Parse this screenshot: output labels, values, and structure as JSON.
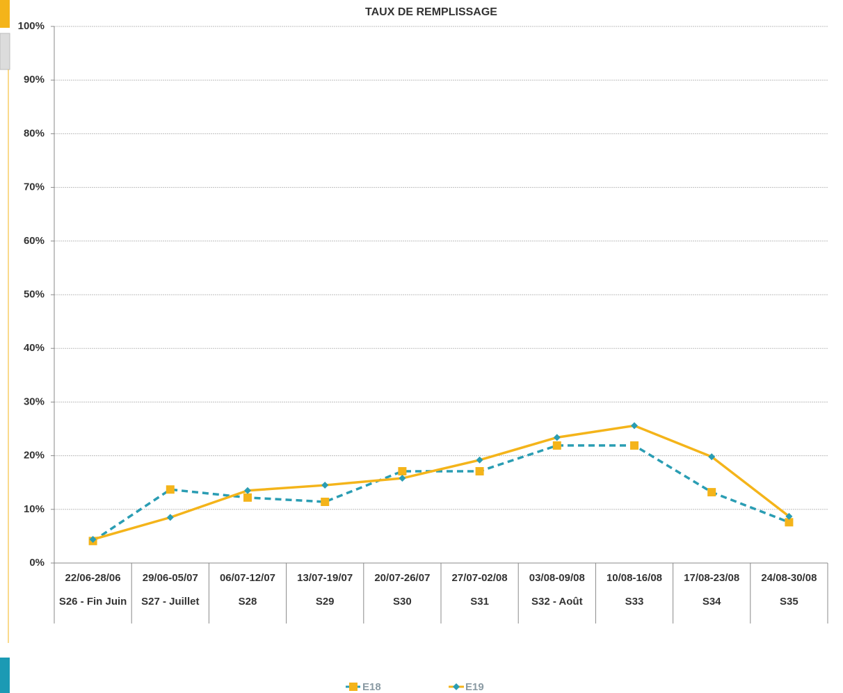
{
  "chart_data": {
    "type": "line",
    "title": "TAUX DE REMPLISSAGE",
    "categories": [
      "22/06-28/06",
      "29/06-05/07",
      "06/07-12/07",
      "13/07-19/07",
      "20/07-26/07",
      "27/07-02/08",
      "03/08-09/08",
      "10/08-16/08",
      "17/08-23/08",
      "24/08-30/08"
    ],
    "category_groups": [
      "S26 - Fin Juin",
      "S27 - Juillet",
      "S28",
      "S29",
      "S30",
      "S31",
      "S32 - Août",
      "S33",
      "S34",
      "S35"
    ],
    "series": [
      {
        "name": "E18",
        "color": "#2a9db3",
        "marker_color": "#f4b41a",
        "dashed": true,
        "marker": "square",
        "values": [
          4.1,
          13.7,
          12.2,
          11.4,
          17.1,
          17.1,
          21.9,
          21.9,
          13.2,
          7.6
        ]
      },
      {
        "name": "E19",
        "color": "#f4b41a",
        "marker_color": "#2a9db3",
        "dashed": false,
        "marker": "diamond",
        "values": [
          4.4,
          8.5,
          13.5,
          14.5,
          15.8,
          19.2,
          23.4,
          25.6,
          19.8,
          8.7
        ]
      }
    ],
    "ylim": [
      0,
      100
    ],
    "yticks": [
      {
        "value": 0,
        "label": "0%"
      },
      {
        "value": 10,
        "label": "10%"
      },
      {
        "value": 20,
        "label": "20%"
      },
      {
        "value": 30,
        "label": "30%"
      },
      {
        "value": 40,
        "label": "40%"
      },
      {
        "value": 50,
        "label": "50%"
      },
      {
        "value": 60,
        "label": "60%"
      },
      {
        "value": 70,
        "label": "70%"
      },
      {
        "value": 80,
        "label": "80%"
      },
      {
        "value": 90,
        "label": "90%"
      },
      {
        "value": 100,
        "label": "100%"
      }
    ],
    "grid": true
  }
}
